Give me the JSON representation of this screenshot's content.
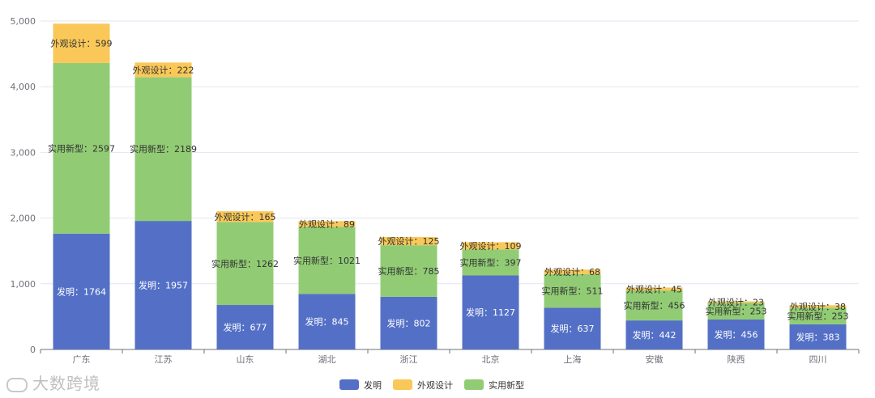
{
  "brand": "大数跨境",
  "colors": {
    "发明": "#5470c6",
    "外观设计": "#fac858",
    "实用新型": "#91cc75",
    "grid": "#e0e6f1",
    "axis": "#6e7079"
  },
  "chart_data": {
    "type": "bar",
    "stacked": true,
    "categories": [
      "广东",
      "江苏",
      "山东",
      "湖北",
      "浙江",
      "北京",
      "上海",
      "安徽",
      "陕西",
      "四川"
    ],
    "series": [
      {
        "name": "发明",
        "values": [
          1764,
          1957,
          677,
          845,
          802,
          1127,
          637,
          442,
          456,
          383
        ]
      },
      {
        "name": "实用新型",
        "values": [
          2597,
          2189,
          1262,
          1021,
          785,
          397,
          511,
          456,
          253,
          253
        ]
      },
      {
        "name": "外观设计",
        "values": [
          599,
          222,
          165,
          89,
          125,
          109,
          68,
          45,
          23,
          38
        ]
      }
    ],
    "legend": [
      "发明",
      "外观设计",
      "实用新型"
    ],
    "legend_position": "bottom-center",
    "label_separator": "：",
    "yticks": [
      "0",
      "1,000",
      "2,000",
      "3,000",
      "4,000",
      "5,000"
    ],
    "ylim": [
      0,
      5000
    ],
    "grid": true
  }
}
